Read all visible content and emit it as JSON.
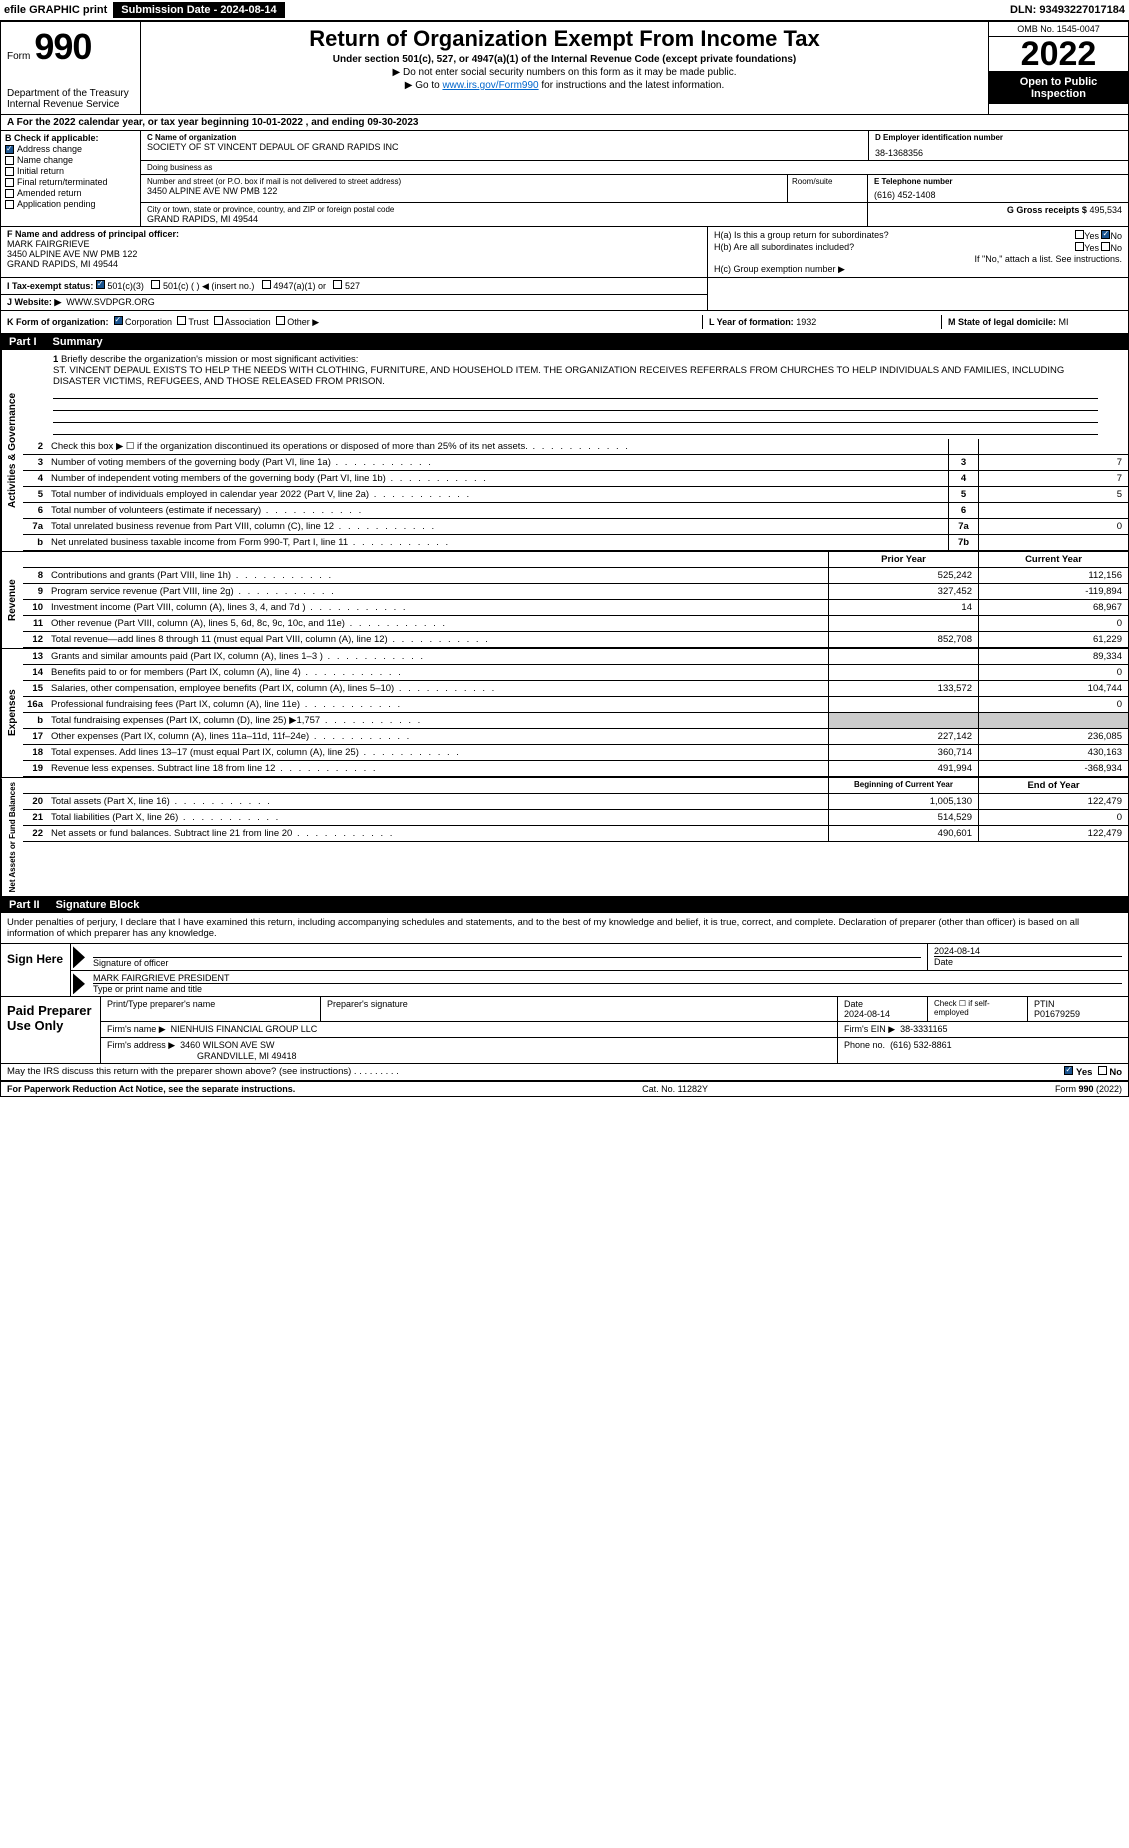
{
  "topbar": {
    "efile": "efile GRAPHIC print",
    "submission_label": "Submission Date - 2024-08-14",
    "dln": "DLN: 93493227017184"
  },
  "header": {
    "form_word": "Form",
    "form_num": "990",
    "dept": "Department of the Treasury",
    "irs": "Internal Revenue Service",
    "title": "Return of Organization Exempt From Income Tax",
    "sub": "Under section 501(c), 527, or 4947(a)(1) of the Internal Revenue Code (except private foundations)",
    "note1": "▶ Do not enter social security numbers on this form as it may be made public.",
    "note2_pre": "▶ Go to ",
    "note2_link": "www.irs.gov/Form990",
    "note2_post": " for instructions and the latest information.",
    "omb": "OMB No. 1545-0047",
    "year": "2022",
    "open": "Open to Public Inspection"
  },
  "row_a": "A For the 2022 calendar year, or tax year beginning 10-01-2022    , and ending 09-30-2023",
  "col_b": {
    "lbl": "B Check if applicable:",
    "items": [
      {
        "label": "Address change",
        "checked": true
      },
      {
        "label": "Name change",
        "checked": false
      },
      {
        "label": "Initial return",
        "checked": false
      },
      {
        "label": "Final return/terminated",
        "checked": false
      },
      {
        "label": "Amended return",
        "checked": false
      },
      {
        "label": "Application pending",
        "checked": false
      }
    ]
  },
  "col_c": {
    "name_lbl": "C Name of organization",
    "name": "SOCIETY OF ST VINCENT DEPAUL OF GRAND RAPIDS INC",
    "dba_lbl": "Doing business as",
    "addr_lbl": "Number and street (or P.O. box if mail is not delivered to street address)",
    "room_lbl": "Room/suite",
    "addr": "3450 ALPINE AVE NW PMB 122",
    "city_lbl": "City or town, state or province, country, and ZIP or foreign postal code",
    "city": "GRAND RAPIDS, MI  49544"
  },
  "col_d": {
    "lbl": "D Employer identification number",
    "ein": "38-1368356"
  },
  "col_e": {
    "lbl": "E Telephone number",
    "phone": "(616) 452-1408"
  },
  "col_g": {
    "lbl": "G Gross receipts $",
    "val": "495,534"
  },
  "col_f": {
    "lbl": "F Name and address of principal officer:",
    "name": "MARK FAIRGRIEVE",
    "addr1": "3450 ALPINE AVE NW PMB 122",
    "addr2": "GRAND RAPIDS, MI  49544"
  },
  "col_h": {
    "ha": "H(a)  Is this a group return for subordinates?",
    "ha_yes": "Yes",
    "ha_no": "No",
    "hb": "H(b)  Are all subordinates included?",
    "hb_note": "If \"No,\" attach a list. See instructions.",
    "hc": "H(c)  Group exemption number ▶"
  },
  "row_i": {
    "lbl": "I   Tax-exempt status:",
    "opts": [
      "501(c)(3)",
      "501(c) (  ) ◀ (insert no.)",
      "4947(a)(1) or",
      "527"
    ]
  },
  "row_j": {
    "lbl": "J   Website: ▶",
    "val": "WWW.SVDPGR.ORG"
  },
  "row_k": {
    "lbl": "K Form of organization:",
    "opts": [
      "Corporation",
      "Trust",
      "Association",
      "Other ▶"
    ]
  },
  "col_l": {
    "lbl": "L Year of formation:",
    "val": "1932"
  },
  "col_m": {
    "lbl": "M State of legal domicile:",
    "val": "MI"
  },
  "part1": {
    "num": "Part I",
    "title": "Summary"
  },
  "mission": {
    "num": "1",
    "lbl": "Briefly describe the organization's mission or most significant activities:",
    "text": "ST. VINCENT DEPAUL EXISTS TO HELP THE NEEDS WITH CLOTHING, FURNITURE, AND HOUSEHOLD ITEM. THE ORGANIZATION RECEIVES REFERRALS FROM CHURCHES TO HELP INDIVIDUALS AND FAMILIES, INCLUDING DISASTER VICTIMS, REFUGEES, AND THOSE RELEASED FROM PRISON."
  },
  "gov_lines": [
    {
      "n": "2",
      "t": "Check this box ▶ ☐  if the organization discontinued its operations or disposed of more than 25% of its net assets.",
      "box": "",
      "v": ""
    },
    {
      "n": "3",
      "t": "Number of voting members of the governing body (Part VI, line 1a)",
      "box": "3",
      "v": "7"
    },
    {
      "n": "4",
      "t": "Number of independent voting members of the governing body (Part VI, line 1b)",
      "box": "4",
      "v": "7"
    },
    {
      "n": "5",
      "t": "Total number of individuals employed in calendar year 2022 (Part V, line 2a)",
      "box": "5",
      "v": "5"
    },
    {
      "n": "6",
      "t": "Total number of volunteers (estimate if necessary)",
      "box": "6",
      "v": ""
    },
    {
      "n": "7a",
      "t": "Total unrelated business revenue from Part VIII, column (C), line 12",
      "box": "7a",
      "v": "0"
    },
    {
      "n": "b",
      "t": "Net unrelated business taxable income from Form 990-T, Part I, line 11",
      "box": "7b",
      "v": ""
    }
  ],
  "col_hdrs": {
    "prior": "Prior Year",
    "current": "Current Year"
  },
  "rev_lines": [
    {
      "n": "8",
      "t": "Contributions and grants (Part VIII, line 1h)",
      "p": "525,242",
      "c": "112,156"
    },
    {
      "n": "9",
      "t": "Program service revenue (Part VIII, line 2g)",
      "p": "327,452",
      "c": "-119,894"
    },
    {
      "n": "10",
      "t": "Investment income (Part VIII, column (A), lines 3, 4, and 7d )",
      "p": "14",
      "c": "68,967"
    },
    {
      "n": "11",
      "t": "Other revenue (Part VIII, column (A), lines 5, 6d, 8c, 9c, 10c, and 11e)",
      "p": "",
      "c": "0"
    },
    {
      "n": "12",
      "t": "Total revenue—add lines 8 through 11 (must equal Part VIII, column (A), line 12)",
      "p": "852,708",
      "c": "61,229"
    }
  ],
  "exp_lines": [
    {
      "n": "13",
      "t": "Grants and similar amounts paid (Part IX, column (A), lines 1–3 )",
      "p": "",
      "c": "89,334"
    },
    {
      "n": "14",
      "t": "Benefits paid to or for members (Part IX, column (A), line 4)",
      "p": "",
      "c": "0"
    },
    {
      "n": "15",
      "t": "Salaries, other compensation, employee benefits (Part IX, column (A), lines 5–10)",
      "p": "133,572",
      "c": "104,744"
    },
    {
      "n": "16a",
      "t": "Professional fundraising fees (Part IX, column (A), line 11e)",
      "p": "",
      "c": "0"
    },
    {
      "n": "b",
      "t": "Total fundraising expenses (Part IX, column (D), line 25) ▶1,757",
      "p": "shade",
      "c": "shade"
    },
    {
      "n": "17",
      "t": "Other expenses (Part IX, column (A), lines 11a–11d, 11f–24e)",
      "p": "227,142",
      "c": "236,085"
    },
    {
      "n": "18",
      "t": "Total expenses. Add lines 13–17 (must equal Part IX, column (A), line 25)",
      "p": "360,714",
      "c": "430,163"
    },
    {
      "n": "19",
      "t": "Revenue less expenses. Subtract line 18 from line 12",
      "p": "491,994",
      "c": "-368,934"
    }
  ],
  "na_hdrs": {
    "begin": "Beginning of Current Year",
    "end": "End of Year"
  },
  "na_lines": [
    {
      "n": "20",
      "t": "Total assets (Part X, line 16)",
      "p": "1,005,130",
      "c": "122,479"
    },
    {
      "n": "21",
      "t": "Total liabilities (Part X, line 26)",
      "p": "514,529",
      "c": "0"
    },
    {
      "n": "22",
      "t": "Net assets or fund balances. Subtract line 21 from line 20",
      "p": "490,601",
      "c": "122,479"
    }
  ],
  "vtabs": {
    "gov": "Activities & Governance",
    "rev": "Revenue",
    "exp": "Expenses",
    "na": "Net Assets or Fund Balances"
  },
  "part2": {
    "num": "Part II",
    "title": "Signature Block"
  },
  "declare": "Under penalties of perjury, I declare that I have examined this return, including accompanying schedules and statements, and to the best of my knowledge and belief, it is true, correct, and complete. Declaration of preparer (other than officer) is based on all information of which preparer has any knowledge.",
  "sign": {
    "label": "Sign Here",
    "sig_lbl": "Signature of officer",
    "date": "2024-08-14",
    "date_lbl": "Date",
    "name": "MARK FAIRGRIEVE  PRESIDENT",
    "name_lbl": "Type or print name and title"
  },
  "prep": {
    "label": "Paid Preparer Use Only",
    "h1": "Print/Type preparer's name",
    "h2": "Preparer's signature",
    "h3": "Date",
    "h3v": "2024-08-14",
    "h4": "Check ☐ if self-employed",
    "h5": "PTIN",
    "h5v": "P01679259",
    "firm_lbl": "Firm's name    ▶",
    "firm": "NIENHUIS FINANCIAL GROUP LLC",
    "ein_lbl": "Firm's EIN ▶",
    "ein": "38-3331165",
    "addr_lbl": "Firm's address ▶",
    "addr1": "3460 WILSON AVE SW",
    "addr2": "GRANDVILLE, MI  49418",
    "phone_lbl": "Phone no.",
    "phone": "(616) 532-8861"
  },
  "discuss": {
    "q": "May the IRS discuss this return with the preparer shown above? (see instructions)",
    "yes": "Yes",
    "no": "No"
  },
  "footer": {
    "left": "For Paperwork Reduction Act Notice, see the separate instructions.",
    "mid": "Cat. No. 11282Y",
    "right": "Form 990 (2022)"
  }
}
